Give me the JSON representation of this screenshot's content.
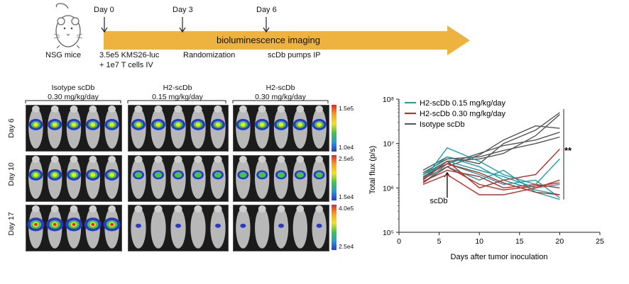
{
  "timeline": {
    "days": [
      "Day 0",
      "Day 3",
      "Day 6"
    ],
    "mouse_label": "NSG mice",
    "arrow_label": "bioluminescence imaging",
    "events": [
      "3.5e5 KMS26-luc",
      "+ 1e7 T cells IV",
      "Randomization",
      "scDb pumps IP"
    ]
  },
  "imaging": {
    "groups": [
      {
        "name": "Isotype scDb",
        "dose": "0.30 mg/kg/day"
      },
      {
        "name": "H2-scDb",
        "dose": "0.15 mg/kg/day"
      },
      {
        "name": "H2-scDb",
        "dose": "0.30 mg/kg/day"
      }
    ],
    "rows": [
      {
        "label": "Day 6",
        "scale_max": "1.5e5",
        "scale_min": "1.0e4"
      },
      {
        "label": "Day 10",
        "scale_max": "2.5e5",
        "scale_min": "1.5e4"
      },
      {
        "label": "Day 17",
        "scale_max": "4.0e5",
        "scale_min": "2.5e4"
      }
    ],
    "colors": {
      "high": "#e8242a",
      "mid": "#f2e31c",
      "mid2": "#3fc44d",
      "low": "#2a3ac8"
    }
  },
  "chart_data": {
    "type": "line",
    "title": "",
    "xlabel": "Days after tumor inoculation",
    "ylabel": "Total flux (p/s)",
    "xlim": [
      0,
      25
    ],
    "xticks": [
      "0",
      "5",
      "10",
      "15",
      "20",
      "25"
    ],
    "ylim_log10": [
      5,
      8
    ],
    "yticks": [
      "10⁵",
      "10⁶",
      "10⁷",
      "10⁸"
    ],
    "annotation_arrow": "scDb",
    "annotation_arrow_x": 6,
    "significance": "**",
    "legend": [
      {
        "name": "H2-scDb 0.15 mg/kg/day",
        "color": "#1a9fa6"
      },
      {
        "name": "H2-scDb 0.30 mg/kg/day",
        "color": "#b5302a"
      },
      {
        "name": "Isotype scDb",
        "color": "#555555"
      }
    ],
    "x": [
      3,
      6,
      10,
      13,
      17,
      20
    ],
    "series": [
      {
        "group": "Isotype scDb",
        "color": "#555555",
        "values": [
          2000000.0,
          4000000.0,
          4500000.0,
          6000000.0,
          15000000.0,
          45000000.0
        ]
      },
      {
        "group": "Isotype scDb",
        "color": "#555555",
        "values": [
          2500000.0,
          5000000.0,
          3500000.0,
          10000000.0,
          20000000.0,
          50000000.0
        ]
      },
      {
        "group": "Isotype scDb",
        "color": "#555555",
        "values": [
          1800000.0,
          3500000.0,
          6000000.0,
          9000000.0,
          12000000.0,
          18000000.0
        ]
      },
      {
        "group": "Isotype scDb",
        "color": "#555555",
        "values": [
          2200000.0,
          4500000.0,
          5000000.0,
          7000000.0,
          10000000.0,
          14000000.0
        ]
      },
      {
        "group": "Isotype scDb",
        "color": "#555555",
        "values": [
          1600000.0,
          3000000.0,
          5500000.0,
          12000000.0,
          25000000.0,
          22000000.0
        ]
      },
      {
        "group": "H2-scDb 0.15 mg/kg/day",
        "color": "#1a9fa6",
        "values": [
          1500000.0,
          8000000.0,
          4000000.0,
          2000000.0,
          1200000.0,
          4500000.0
        ]
      },
      {
        "group": "H2-scDb 0.15 mg/kg/day",
        "color": "#1a9fa6",
        "values": [
          2000000.0,
          5000000.0,
          3000000.0,
          1500000.0,
          900000.0,
          700000.0
        ]
      },
      {
        "group": "H2-scDb 0.15 mg/kg/day",
        "color": "#1a9fa6",
        "values": [
          1800000.0,
          4000000.0,
          2500000.0,
          1800000.0,
          1000000.0,
          1200000.0
        ]
      },
      {
        "group": "H2-scDb 0.15 mg/kg/day",
        "color": "#1a9fa6",
        "values": [
          1300000.0,
          3500000.0,
          2000000.0,
          1200000.0,
          1500000.0,
          600000.0
        ]
      },
      {
        "group": "H2-scDb 0.15 mg/kg/day",
        "color": "#1a9fa6",
        "values": [
          1600000.0,
          3000000.0,
          1500000.0,
          2500000.0,
          800000.0,
          550000.0
        ]
      },
      {
        "group": "H2-scDb 0.30 mg/kg/day",
        "color": "#b5302a",
        "values": [
          1500000.0,
          4000000.0,
          1000000.0,
          1500000.0,
          2000000.0,
          7500000.0
        ]
      },
      {
        "group": "H2-scDb 0.30 mg/kg/day",
        "color": "#b5302a",
        "values": [
          1200000.0,
          2000000.0,
          700000.0,
          700000.0,
          1000000.0,
          1500000.0
        ]
      },
      {
        "group": "H2-scDb 0.30 mg/kg/day",
        "color": "#b5302a",
        "values": [
          1400000.0,
          2500000.0,
          1800000.0,
          1000000.0,
          1200000.0,
          1000000.0
        ]
      },
      {
        "group": "H2-scDb 0.30 mg/kg/day",
        "color": "#b5302a",
        "values": [
          1700000.0,
          3500000.0,
          2200000.0,
          1300000.0,
          800000.0,
          700000.0
        ]
      },
      {
        "group": "H2-scDb 0.30 mg/kg/day",
        "color": "#b5302a",
        "values": [
          1300000.0,
          3000000.0,
          1200000.0,
          900000.0,
          1100000.0,
          1300000.0
        ]
      }
    ]
  }
}
